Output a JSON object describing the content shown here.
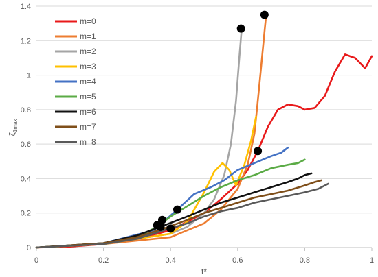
{
  "chart_data": {
    "type": "line",
    "xlabel": "t*",
    "ylabel": {
      "base": "ζ",
      "sub": "1max"
    },
    "xlim": [
      0,
      1
    ],
    "ylim": [
      0,
      1.4
    ],
    "x_ticks": [
      "0",
      "0.2",
      "0.4",
      "0.6",
      "0.8",
      "1"
    ],
    "y_ticks": [
      "0",
      "0.2",
      "0.4",
      "0.6",
      "0.8",
      "1",
      "1.2",
      "1.4"
    ],
    "grid": "horizontal",
    "legend_position": "top-left",
    "series": [
      {
        "name": "m=0",
        "color": "#e8191a",
        "points": [
          [
            0,
            0
          ],
          [
            0.1,
            0.005
          ],
          [
            0.2,
            0.02
          ],
          [
            0.3,
            0.05
          ],
          [
            0.4,
            0.1
          ],
          [
            0.5,
            0.2
          ],
          [
            0.55,
            0.28
          ],
          [
            0.6,
            0.37
          ],
          [
            0.63,
            0.45
          ],
          [
            0.66,
            0.56
          ],
          [
            0.69,
            0.7
          ],
          [
            0.72,
            0.8
          ],
          [
            0.75,
            0.83
          ],
          [
            0.78,
            0.82
          ],
          [
            0.8,
            0.8
          ],
          [
            0.83,
            0.81
          ],
          [
            0.86,
            0.88
          ],
          [
            0.89,
            1.02
          ],
          [
            0.92,
            1.12
          ],
          [
            0.95,
            1.1
          ],
          [
            0.98,
            1.04
          ],
          [
            1.0,
            1.11
          ]
        ],
        "marker": [
          0.66,
          0.56
        ]
      },
      {
        "name": "m=1",
        "color": "#ed7d31",
        "points": [
          [
            0,
            0
          ],
          [
            0.2,
            0.02
          ],
          [
            0.4,
            0.06
          ],
          [
            0.5,
            0.14
          ],
          [
            0.55,
            0.22
          ],
          [
            0.6,
            0.34
          ],
          [
            0.63,
            0.48
          ],
          [
            0.65,
            0.66
          ],
          [
            0.66,
            0.85
          ],
          [
            0.67,
            1.05
          ],
          [
            0.68,
            1.25
          ],
          [
            0.685,
            1.35
          ]
        ],
        "marker": [
          0.68,
          1.35
        ]
      },
      {
        "name": "m=2",
        "color": "#a5a5a5",
        "points": [
          [
            0,
            0
          ],
          [
            0.2,
            0.02
          ],
          [
            0.4,
            0.08
          ],
          [
            0.45,
            0.12
          ],
          [
            0.5,
            0.2
          ],
          [
            0.53,
            0.28
          ],
          [
            0.56,
            0.42
          ],
          [
            0.58,
            0.6
          ],
          [
            0.595,
            0.85
          ],
          [
            0.605,
            1.1
          ],
          [
            0.612,
            1.27
          ]
        ],
        "marker": [
          0.61,
          1.27
        ]
      },
      {
        "name": "m=3",
        "color": "#ffc000",
        "points": [
          [
            0,
            0
          ],
          [
            0.2,
            0.02
          ],
          [
            0.4,
            0.08
          ],
          [
            0.45,
            0.15
          ],
          [
            0.5,
            0.32
          ],
          [
            0.53,
            0.44
          ],
          [
            0.555,
            0.49
          ],
          [
            0.575,
            0.45
          ],
          [
            0.595,
            0.36
          ],
          [
            0.62,
            0.48
          ],
          [
            0.64,
            0.62
          ],
          [
            0.655,
            0.76
          ]
        ],
        "marker": null
      },
      {
        "name": "m=4",
        "color": "#4472c4",
        "points": [
          [
            0,
            0
          ],
          [
            0.2,
            0.025
          ],
          [
            0.35,
            0.1
          ],
          [
            0.42,
            0.22
          ],
          [
            0.47,
            0.31
          ],
          [
            0.52,
            0.35
          ],
          [
            0.56,
            0.39
          ],
          [
            0.6,
            0.45
          ],
          [
            0.65,
            0.49
          ],
          [
            0.7,
            0.53
          ],
          [
            0.73,
            0.55
          ],
          [
            0.75,
            0.58
          ]
        ],
        "marker": [
          0.42,
          0.22
        ]
      },
      {
        "name": "m=5",
        "color": "#5bab46",
        "points": [
          [
            0,
            0
          ],
          [
            0.2,
            0.025
          ],
          [
            0.3,
            0.06
          ],
          [
            0.36,
            0.12
          ],
          [
            0.4,
            0.18
          ],
          [
            0.45,
            0.24
          ],
          [
            0.5,
            0.3
          ],
          [
            0.55,
            0.35
          ],
          [
            0.6,
            0.39
          ],
          [
            0.65,
            0.42
          ],
          [
            0.7,
            0.46
          ],
          [
            0.75,
            0.48
          ],
          [
            0.78,
            0.49
          ],
          [
            0.8,
            0.51
          ]
        ],
        "marker": [
          0.375,
          0.16
        ]
      },
      {
        "name": "m=6",
        "color": "#111111",
        "points": [
          [
            0,
            0
          ],
          [
            0.2,
            0.025
          ],
          [
            0.3,
            0.07
          ],
          [
            0.37,
            0.12
          ],
          [
            0.45,
            0.18
          ],
          [
            0.5,
            0.22
          ],
          [
            0.55,
            0.26
          ],
          [
            0.6,
            0.29
          ],
          [
            0.65,
            0.32
          ],
          [
            0.7,
            0.35
          ],
          [
            0.75,
            0.38
          ],
          [
            0.78,
            0.4
          ],
          [
            0.8,
            0.42
          ],
          [
            0.82,
            0.43
          ]
        ],
        "marker": [
          0.36,
          0.13
        ]
      },
      {
        "name": "m=7",
        "color": "#7f4f1a",
        "points": [
          [
            0,
            0
          ],
          [
            0.2,
            0.025
          ],
          [
            0.3,
            0.06
          ],
          [
            0.38,
            0.11
          ],
          [
            0.45,
            0.16
          ],
          [
            0.5,
            0.2
          ],
          [
            0.55,
            0.23
          ],
          [
            0.6,
            0.26
          ],
          [
            0.65,
            0.29
          ],
          [
            0.7,
            0.31
          ],
          [
            0.75,
            0.33
          ],
          [
            0.8,
            0.36
          ],
          [
            0.83,
            0.38
          ],
          [
            0.85,
            0.39
          ]
        ],
        "marker": [
          0.37,
          0.12
        ]
      },
      {
        "name": "m=8",
        "color": "#595959",
        "points": [
          [
            0,
            0
          ],
          [
            0.2,
            0.02
          ],
          [
            0.3,
            0.05
          ],
          [
            0.38,
            0.1
          ],
          [
            0.45,
            0.14
          ],
          [
            0.5,
            0.18
          ],
          [
            0.55,
            0.21
          ],
          [
            0.6,
            0.23
          ],
          [
            0.65,
            0.26
          ],
          [
            0.7,
            0.28
          ],
          [
            0.75,
            0.3
          ],
          [
            0.8,
            0.32
          ],
          [
            0.84,
            0.34
          ],
          [
            0.87,
            0.37
          ]
        ],
        "marker": [
          0.4,
          0.11
        ]
      }
    ]
  }
}
